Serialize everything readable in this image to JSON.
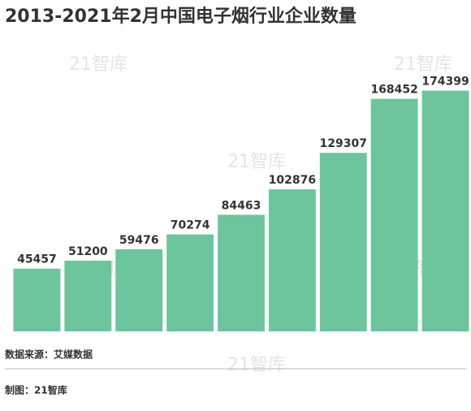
{
  "chart_data": {
    "type": "bar",
    "title": "2013-2021年2月中国电子烟行业企业数量",
    "categories": [
      null,
      null,
      null,
      null,
      null,
      null,
      null,
      null,
      null
    ],
    "values": [
      45457,
      51200,
      59476,
      70274,
      84463,
      102876,
      129307,
      168452,
      174399
    ],
    "color": "#6cc59c",
    "ylim": [
      0,
      200000
    ],
    "source": "数据来源：艾媒数据",
    "credit": "制图：21智库",
    "watermark": "21智库"
  }
}
